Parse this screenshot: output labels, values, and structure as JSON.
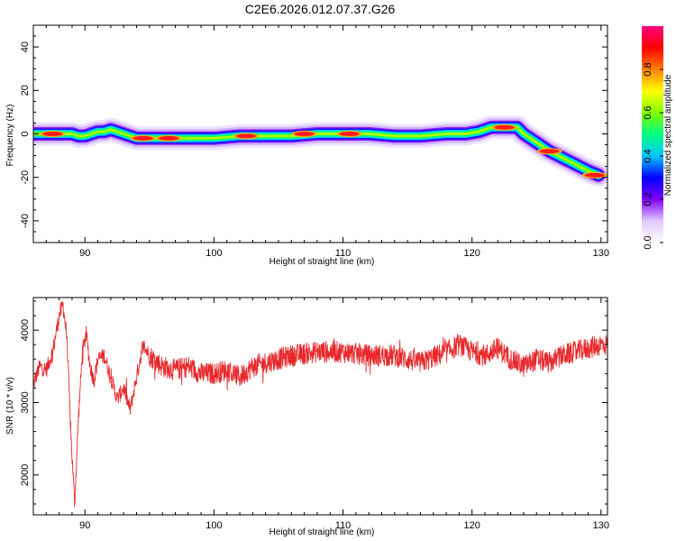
{
  "figure": {
    "title": "C2E6.2026.012.07.37.G26"
  },
  "chart_data": [
    {
      "type": "heatmap",
      "xlabel": "Height of straight line (km)",
      "ylabel": "Frequency (Hz)",
      "xlim": [
        86,
        130.5
      ],
      "ylim": [
        -50,
        50
      ],
      "xticks": [
        90,
        100,
        110,
        120,
        130
      ],
      "yticks": [
        -40,
        -20,
        0,
        20,
        40
      ],
      "colorbar": {
        "label": "Normalized spectral amplitude",
        "range": [
          0,
          1
        ],
        "ticks": [
          0.0,
          0.2,
          0.4,
          0.6,
          0.8
        ],
        "colors": [
          "#ffffff",
          "#e0c8ff",
          "#8000ff",
          "#0000ff",
          "#00c8ff",
          "#00ff80",
          "#80ff00",
          "#ffff00",
          "#ff8000",
          "#ff0000",
          "#ff0080"
        ]
      },
      "ridge": {
        "x": [
          86,
          89,
          89.5,
          90,
          90.5,
          91,
          91.5,
          92,
          92.5,
          93,
          93.5,
          94,
          96,
          98,
          100,
          102,
          104,
          106,
          108,
          110,
          112,
          114,
          116,
          118,
          119.5,
          120.5,
          121.5,
          122,
          123,
          123.5,
          124,
          125,
          126,
          127,
          128,
          129,
          129.8
        ],
        "y": [
          0,
          0,
          -1,
          -1,
          0,
          1,
          1,
          2,
          1,
          0,
          -1,
          -2,
          -2,
          -2,
          -2,
          -1,
          -1,
          -1,
          0,
          0,
          0,
          -1,
          -1,
          0,
          0,
          1,
          3,
          3,
          3,
          3,
          0,
          -4,
          -8,
          -11,
          -14,
          -17,
          -19
        ]
      },
      "hot_spots": [
        {
          "x": 87.5,
          "y": 0
        },
        {
          "x": 94.5,
          "y": -2
        },
        {
          "x": 96.5,
          "y": -2
        },
        {
          "x": 102.5,
          "y": -1
        },
        {
          "x": 107,
          "y": 0
        },
        {
          "x": 110.5,
          "y": 0
        },
        {
          "x": 122.5,
          "y": 3
        },
        {
          "x": 126,
          "y": -8
        },
        {
          "x": 129.5,
          "y": -19
        }
      ]
    },
    {
      "type": "line",
      "xlabel": "Height of straight line (km)",
      "ylabel": "SNR (10 * v/v)",
      "xlim": [
        86,
        130.5
      ],
      "ylim": [
        1450,
        4450
      ],
      "xticks": [
        90,
        100,
        110,
        120,
        130
      ],
      "yticks": [
        2000,
        3000,
        4000
      ],
      "color": "#e8282b",
      "series": [
        {
          "x": [
            86,
            86.5,
            87,
            87.5,
            88,
            88.3,
            88.6,
            88.9,
            89.2,
            89.5,
            89.8,
            90.1,
            90.4,
            90.7,
            91,
            91.5,
            92,
            92.5,
            93,
            93.5,
            94,
            94.5,
            95,
            96,
            97,
            98,
            99,
            100,
            101,
            102,
            103,
            104,
            106,
            108,
            110,
            112,
            114,
            116,
            118,
            119,
            120,
            121,
            122,
            123,
            124,
            125,
            126,
            127,
            128,
            129,
            130
          ],
          "y": [
            3250,
            3500,
            3450,
            3700,
            4200,
            4350,
            3900,
            2600,
            1600,
            2800,
            3700,
            3950,
            3500,
            3300,
            3600,
            3650,
            3350,
            3050,
            3200,
            2900,
            3350,
            3800,
            3650,
            3500,
            3450,
            3500,
            3400,
            3400,
            3450,
            3350,
            3500,
            3550,
            3650,
            3700,
            3700,
            3650,
            3650,
            3550,
            3700,
            3800,
            3700,
            3650,
            3750,
            3600,
            3500,
            3600,
            3550,
            3650,
            3700,
            3750,
            3800
          ]
        }
      ]
    }
  ]
}
